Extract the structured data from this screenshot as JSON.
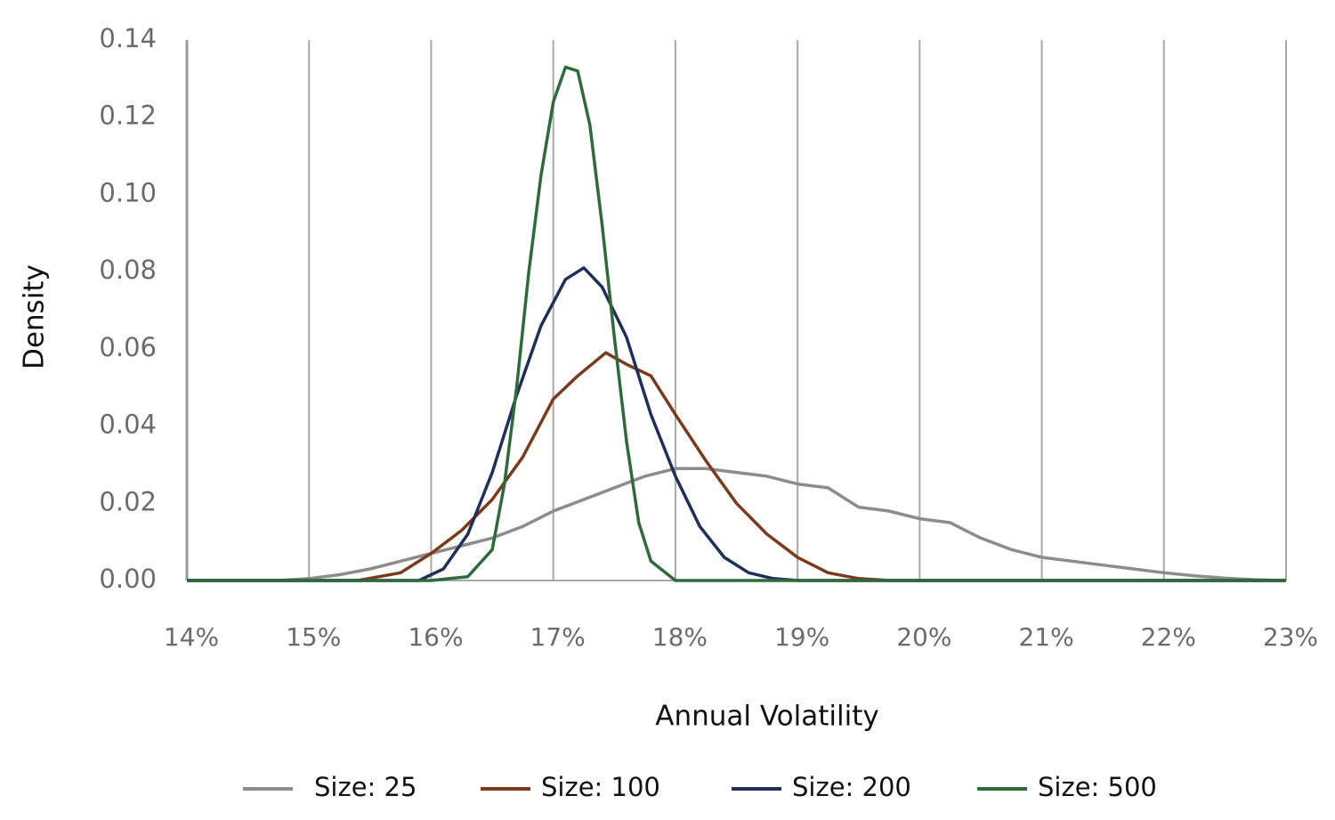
{
  "chart_data": {
    "type": "line",
    "x_label": "Annual Volatility",
    "y_label": "Density",
    "xlim": [
      14,
      23
    ],
    "xticks": [
      {
        "value": 14,
        "label": "14%"
      },
      {
        "value": 15,
        "label": "15%"
      },
      {
        "value": 16,
        "label": "16%"
      },
      {
        "value": 17,
        "label": "17%"
      },
      {
        "value": 18,
        "label": "18%"
      },
      {
        "value": 19,
        "label": "19%"
      },
      {
        "value": 20,
        "label": "20%"
      },
      {
        "value": 21,
        "label": "21%"
      },
      {
        "value": 22,
        "label": "22%"
      },
      {
        "value": 23,
        "label": "23%"
      }
    ],
    "ylim": [
      0,
      0.14
    ],
    "yticks": [
      {
        "value": 0,
        "label": "0.00"
      },
      0.02,
      0.04,
      0.06,
      0.08,
      {
        "value": 0.1,
        "label": "0.10"
      },
      0.12,
      0.14
    ],
    "grid": "x",
    "legend": "bottom",
    "series": [
      {
        "name": "Size: 25",
        "color": "#8c8c8c",
        "x": [
          14,
          14.75,
          15,
          15.25,
          15.5,
          15.75,
          16,
          16.25,
          16.5,
          16.75,
          17,
          17.25,
          17.5,
          17.75,
          18,
          18.25,
          18.5,
          18.75,
          19,
          19.25,
          19.5,
          19.75,
          20,
          20.25,
          20.5,
          20.75,
          21,
          21.25,
          21.5,
          21.75,
          22,
          22.25,
          22.5,
          22.75,
          23
        ],
        "values": [
          0,
          0,
          0.0005,
          0.0015,
          0.003,
          0.005,
          0.007,
          0.009,
          0.011,
          0.014,
          0.018,
          0.021,
          0.024,
          0.027,
          0.029,
          0.029,
          0.028,
          0.027,
          0.025,
          0.024,
          0.019,
          0.018,
          0.016,
          0.015,
          0.011,
          0.008,
          0.006,
          0.005,
          0.004,
          0.003,
          0.002,
          0.0012,
          0.0006,
          0.0002,
          0
        ]
      },
      {
        "name": "Size: 100",
        "color": "#7b3a1c",
        "x": [
          14,
          15.4,
          15.75,
          16,
          16.25,
          16.5,
          16.75,
          17,
          17.2,
          17.43,
          17.6,
          17.8,
          18,
          18.25,
          18.5,
          18.75,
          19,
          19.25,
          19.5,
          19.75,
          23
        ],
        "values": [
          0,
          0,
          0.002,
          0.007,
          0.013,
          0.021,
          0.032,
          0.047,
          0.053,
          0.059,
          0.056,
          0.053,
          0.043,
          0.031,
          0.02,
          0.012,
          0.006,
          0.002,
          0.0005,
          0,
          0
        ]
      },
      {
        "name": "Size: 200",
        "color": "#1f2f5a",
        "x": [
          14,
          15.9,
          16.1,
          16.3,
          16.5,
          16.7,
          16.9,
          17.1,
          17.25,
          17.4,
          17.6,
          17.8,
          18,
          18.2,
          18.4,
          18.6,
          18.8,
          19,
          23
        ],
        "values": [
          0,
          0,
          0.003,
          0.012,
          0.028,
          0.048,
          0.066,
          0.078,
          0.081,
          0.076,
          0.063,
          0.043,
          0.027,
          0.014,
          0.006,
          0.002,
          0.0005,
          0,
          0
        ]
      },
      {
        "name": "Size: 500",
        "color": "#2f6b3a",
        "x": [
          14,
          16,
          16.3,
          16.5,
          16.6,
          16.7,
          16.8,
          16.9,
          17,
          17.1,
          17.2,
          17.3,
          17.4,
          17.5,
          17.6,
          17.7,
          17.8,
          18,
          23
        ],
        "values": [
          0,
          0,
          0.001,
          0.008,
          0.025,
          0.05,
          0.08,
          0.105,
          0.124,
          0.133,
          0.132,
          0.118,
          0.092,
          0.063,
          0.036,
          0.015,
          0.005,
          0,
          0
        ]
      }
    ]
  }
}
